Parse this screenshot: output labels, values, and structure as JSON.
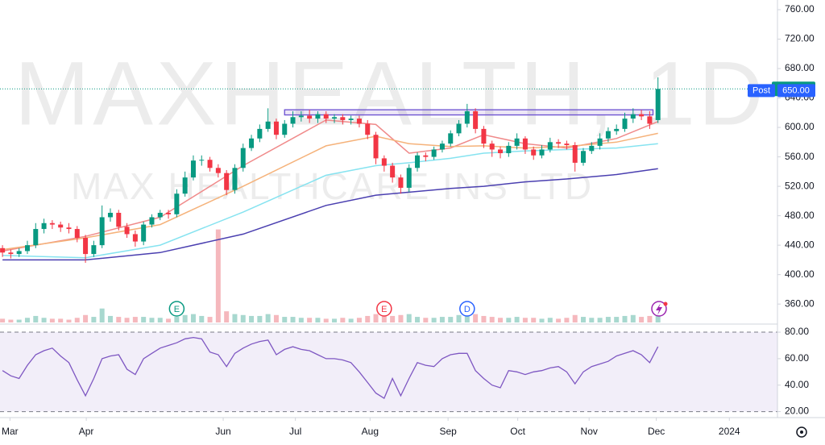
{
  "chart_data": {
    "type": "candlestick",
    "title": "MAXHEALTH, 1D",
    "subtitle": "MAX HEALTHCARE INS LTD",
    "xlim": [
      -0.3,
      93.4
    ],
    "xticks": [
      {
        "value": 0.9,
        "label": "Mar"
      },
      {
        "value": 10.1,
        "label": "Apr"
      },
      {
        "value": 26.6,
        "label": "Jun"
      },
      {
        "value": 35.3,
        "label": "Jul"
      },
      {
        "value": 44.3,
        "label": "Aug"
      },
      {
        "value": 53.7,
        "label": "Sep"
      },
      {
        "value": 62.1,
        "label": "Oct"
      },
      {
        "value": 70.7,
        "label": "Nov"
      },
      {
        "value": 78.8,
        "label": "Dec"
      },
      {
        "value": 87.6,
        "label": "2024"
      }
    ],
    "ylim": [
      335,
      773.15
    ],
    "yticks": [
      {
        "value": 360,
        "label": "360.00"
      },
      {
        "value": 400,
        "label": "400.00"
      },
      {
        "value": 440,
        "label": "440.00"
      },
      {
        "value": 480,
        "label": "480.00"
      },
      {
        "value": 520,
        "label": "520.00"
      },
      {
        "value": 560,
        "label": "560.00"
      },
      {
        "value": 600,
        "label": "600.00"
      },
      {
        "value": 640,
        "label": "640.00"
      },
      {
        "value": 680,
        "label": "680.00"
      },
      {
        "value": 720,
        "label": "720.00"
      },
      {
        "value": 760,
        "label": "760.00"
      }
    ],
    "candles": {
      "up_color": "#089981",
      "down_color": "#f23645",
      "open": [
        436,
        430,
        428,
        432,
        440,
        462,
        470,
        468,
        464,
        462,
        450,
        428,
        440,
        478,
        484,
        465,
        455,
        445,
        468,
        478,
        484,
        482,
        510,
        532,
        555,
        556,
        545,
        538,
        515,
        545,
        572,
        585,
        598,
        608,
        590,
        605,
        614,
        616,
        612,
        618,
        612,
        614,
        610,
        612,
        605,
        590,
        558,
        548,
        532,
        518,
        545,
        562,
        560,
        570,
        578,
        592,
        605,
        622,
        598,
        578,
        570,
        565,
        575,
        585,
        570,
        562,
        570,
        580,
        578,
        576,
        552,
        568,
        575,
        585,
        595,
        598,
        612,
        618,
        615,
        610
      ],
      "high": [
        440,
        434,
        436,
        446,
        470,
        476,
        474,
        472,
        470,
        466,
        454,
        446,
        494,
        490,
        488,
        470,
        460,
        472,
        482,
        488,
        488,
        516,
        540,
        562,
        562,
        560,
        550,
        542,
        550,
        578,
        590,
        604,
        626,
        612,
        610,
        622,
        622,
        624,
        622,
        622,
        618,
        618,
        616,
        616,
        610,
        594,
        562,
        552,
        536,
        550,
        566,
        566,
        574,
        582,
        596,
        610,
        632,
        626,
        602,
        582,
        574,
        580,
        592,
        588,
        574,
        576,
        586,
        584,
        582,
        580,
        572,
        580,
        592,
        600,
        604,
        620,
        626,
        624,
        622,
        668
      ],
      "low": [
        424,
        422,
        424,
        428,
        436,
        456,
        462,
        458,
        456,
        444,
        416,
        424,
        436,
        472,
        460,
        450,
        438,
        440,
        464,
        474,
        476,
        478,
        506,
        528,
        548,
        540,
        532,
        508,
        510,
        540,
        568,
        580,
        594,
        584,
        586,
        600,
        608,
        606,
        606,
        606,
        606,
        604,
        604,
        600,
        584,
        550,
        540,
        525,
        510,
        512,
        540,
        554,
        556,
        566,
        574,
        588,
        600,
        592,
        572,
        560,
        558,
        560,
        570,
        564,
        556,
        558,
        566,
        572,
        570,
        540,
        548,
        564,
        570,
        580,
        590,
        594,
        606,
        610,
        598,
        606
      ],
      "close": [
        430,
        428,
        432,
        440,
        462,
        470,
        468,
        464,
        462,
        450,
        428,
        440,
        478,
        484,
        465,
        455,
        445,
        468,
        478,
        484,
        482,
        510,
        532,
        555,
        556,
        545,
        538,
        515,
        545,
        572,
        585,
        598,
        608,
        590,
        605,
        614,
        616,
        612,
        618,
        612,
        614,
        610,
        612,
        605,
        590,
        558,
        548,
        532,
        518,
        545,
        562,
        560,
        570,
        578,
        592,
        605,
        622,
        598,
        578,
        570,
        565,
        575,
        585,
        570,
        562,
        570,
        580,
        578,
        576,
        552,
        568,
        575,
        585,
        595,
        598,
        612,
        618,
        615,
        605,
        652.35
      ]
    },
    "series": [
      {
        "color": "#f08a8a",
        "x": [
          0,
          10,
          19,
          29,
          39,
          45,
          49,
          54,
          58,
          63,
          68,
          74,
          79
        ],
        "values": [
          432,
          452,
          478,
          548,
          610,
          604,
          565,
          572,
          590,
          578,
          572,
          585,
          608
        ]
      },
      {
        "color": "#f5b27a",
        "x": [
          0,
          10,
          19,
          29,
          39,
          45,
          49,
          54,
          58,
          63,
          68,
          74,
          79
        ],
        "values": [
          434,
          450,
          468,
          520,
          575,
          588,
          578,
          574,
          575,
          572,
          574,
          580,
          592
        ]
      },
      {
        "color": "#86e3f0",
        "x": [
          0,
          10,
          19,
          29,
          39,
          45,
          49,
          54,
          58,
          63,
          68,
          74,
          79
        ],
        "values": [
          426,
          423,
          440,
          485,
          535,
          548,
          552,
          558,
          565,
          568,
          570,
          572,
          578
        ]
      },
      {
        "color": "#4a3fb0",
        "x": [
          0,
          10,
          19,
          29,
          39,
          45,
          49,
          54,
          58,
          63,
          68,
          74,
          79
        ],
        "values": [
          420,
          420,
          430,
          455,
          494,
          508,
          512,
          517,
          520,
          526,
          530,
          536,
          544
        ]
      }
    ],
    "volume": {
      "ylim": [
        0,
        130
      ],
      "up_color": "#a8d8cf",
      "down_color": "#f5b8bd",
      "values": [
        4,
        3,
        3,
        5,
        7,
        5,
        4,
        4,
        3,
        5,
        8,
        6,
        15,
        7,
        6,
        5,
        6,
        6,
        5,
        5,
        4,
        6,
        8,
        9,
        7,
        6,
        100,
        12,
        9,
        8,
        7,
        7,
        9,
        8,
        6,
        6,
        5,
        5,
        5,
        4,
        4,
        5,
        4,
        5,
        7,
        9,
        8,
        7,
        8,
        9,
        6,
        5,
        5,
        6,
        6,
        8,
        12,
        9,
        7,
        6,
        5,
        5,
        6,
        5,
        5,
        4,
        5,
        4,
        5,
        8,
        6,
        5,
        5,
        6,
        6,
        7,
        8,
        6,
        7,
        12
      ]
    },
    "last_price_color": "#089981",
    "post": {
      "label": "Post",
      "price": {
        "value": 650,
        "label": "650.00"
      },
      "color": "#2962ff"
    },
    "zone": {
      "from_x": 34,
      "to_x": 78.4,
      "low": 617,
      "high": 624,
      "color": "#6a4fd0"
    },
    "events": [
      {
        "label": "E",
        "x": 21,
        "color": "#089981"
      },
      {
        "label": "E",
        "x": 46,
        "color": "#f23645"
      },
      {
        "label": "D",
        "x": 56,
        "color": "#2962ff"
      }
    ],
    "rsi": {
      "type": "line",
      "color": "#7e57c2",
      "ylim": [
        17.3,
        84.3
      ],
      "yticks": [
        {
          "value": 20,
          "label": "20.00"
        },
        {
          "value": 40,
          "label": "40.00"
        },
        {
          "value": 60,
          "label": "60.00"
        },
        {
          "value": 80,
          "label": "80.00"
        }
      ],
      "values": [
        51,
        47,
        45,
        55,
        63,
        66,
        68,
        62,
        57,
        44,
        32,
        45,
        60,
        62,
        63,
        52,
        48,
        60,
        64,
        68,
        70,
        72,
        75,
        76,
        75,
        65,
        63,
        54,
        64,
        68,
        71,
        73,
        74,
        63,
        67,
        69,
        67,
        66,
        63,
        60,
        60,
        59,
        57,
        50,
        42,
        34,
        30,
        45,
        32,
        45,
        57,
        55,
        54,
        60,
        63,
        64,
        64,
        51,
        45,
        40,
        38,
        51,
        50,
        48,
        50,
        51,
        53,
        54,
        50,
        41,
        50,
        54,
        56,
        58,
        62,
        64,
        66,
        63,
        57,
        69
      ]
    }
  }
}
